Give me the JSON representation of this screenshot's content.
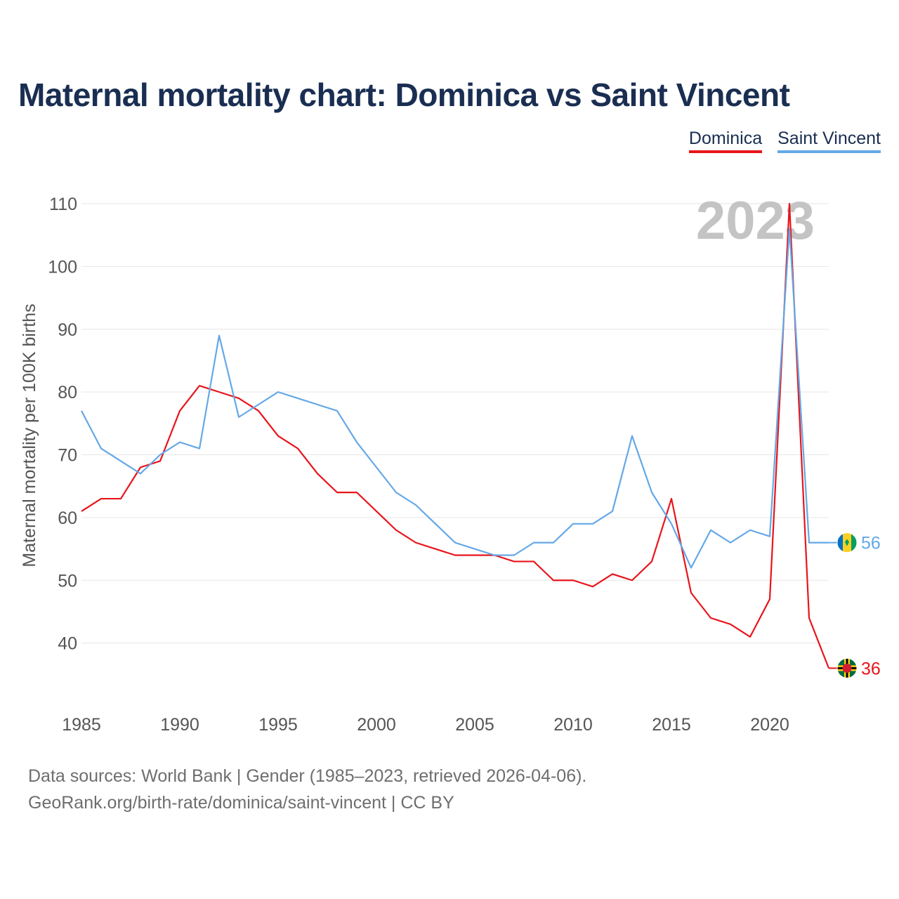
{
  "title": "Maternal mortality chart: Dominica vs Saint Vincent",
  "legend": {
    "dominica": "Dominica",
    "saint_vincent": "Saint Vincent"
  },
  "source_line1": "Data sources: World Bank | Gender (1985–2023, retrieved 2026-04-06).",
  "source_line2": "GeoRank.org/birth-rate/dominica/saint-vincent | CC BY",
  "chart_data": {
    "type": "line",
    "title": "Maternal mortality chart: Dominica vs Saint Vincent",
    "xlabel": "",
    "ylabel": "Maternal mortality per 100K births",
    "year_watermark": "2023",
    "xlim": [
      1985,
      2023
    ],
    "ylim": [
      30,
      110
    ],
    "y_ticks": [
      40,
      50,
      60,
      70,
      80,
      90,
      100,
      110
    ],
    "x_ticks": [
      1985,
      1990,
      1995,
      2000,
      2005,
      2010,
      2015,
      2020
    ],
    "x": [
      1985,
      1986,
      1987,
      1988,
      1989,
      1990,
      1991,
      1992,
      1993,
      1994,
      1995,
      1996,
      1997,
      1998,
      1999,
      2000,
      2001,
      2002,
      2003,
      2004,
      2005,
      2006,
      2007,
      2008,
      2009,
      2010,
      2011,
      2012,
      2013,
      2014,
      2015,
      2016,
      2017,
      2018,
      2019,
      2020,
      2021,
      2022,
      2023
    ],
    "series": [
      {
        "name": "Dominica",
        "color": "#e8141b",
        "end_label": "36",
        "values": [
          61,
          63,
          63,
          68,
          69,
          77,
          81,
          80,
          79,
          77,
          73,
          71,
          67,
          64,
          64,
          61,
          58,
          56,
          55,
          54,
          54,
          54,
          53,
          53,
          50,
          50,
          49,
          51,
          50,
          53,
          63,
          48,
          44,
          43,
          41,
          47,
          110,
          44,
          36
        ]
      },
      {
        "name": "Saint Vincent",
        "color": "#64a8e6",
        "end_label": "56",
        "values": [
          77,
          71,
          69,
          67,
          70,
          72,
          71,
          89,
          76,
          78,
          80,
          79,
          78,
          77,
          72,
          68,
          64,
          62,
          59,
          56,
          55,
          54,
          54,
          56,
          56,
          59,
          59,
          61,
          73,
          64,
          59,
          52,
          58,
          56,
          58,
          57,
          106,
          56,
          56
        ]
      }
    ]
  }
}
